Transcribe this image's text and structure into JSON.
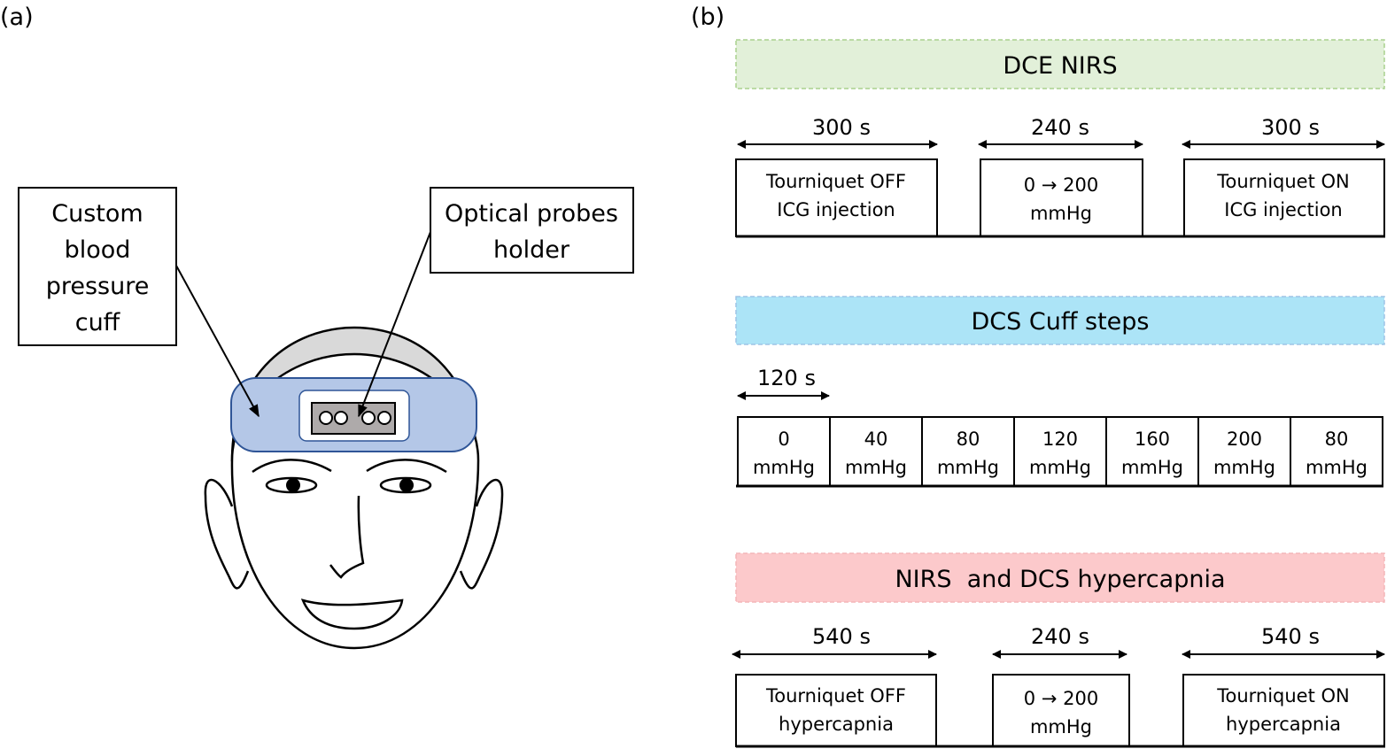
{
  "panel_a": {
    "label": "(a)",
    "cuff_label": [
      "Custom",
      "blood",
      "pressure",
      "cuff"
    ],
    "probe_label": [
      "Optical probes",
      "holder"
    ]
  },
  "panel_b": {
    "label": "(b)",
    "dce_nirs": {
      "title": "DCE NIRS",
      "color": "#e2f0d9",
      "durations": [
        "300 s",
        "240 s",
        "300 s"
      ],
      "boxes": [
        [
          "Tourniquet OFF",
          "ICG injection"
        ],
        [
          "0 → 200",
          "mmHg"
        ],
        [
          "Tourniquet ON",
          "ICG injection"
        ]
      ]
    },
    "dcs_cuff": {
      "title": "DCS Cuff steps",
      "color": "#ace4f7",
      "step_duration": "120 s",
      "steps": [
        [
          "0",
          "mmHg"
        ],
        [
          "40",
          "mmHg"
        ],
        [
          "80",
          "mmHg"
        ],
        [
          "120",
          "mmHg"
        ],
        [
          "160",
          "mmHg"
        ],
        [
          "200",
          "mmHg"
        ],
        [
          "80",
          "mmHg"
        ]
      ]
    },
    "hypercapnia": {
      "title": "NIRS  and DCS hypercapnia",
      "color": "#fcc9cb",
      "durations": [
        "540 s",
        "240 s",
        "540 s"
      ],
      "boxes": [
        [
          "Tourniquet OFF",
          "hypercapnia"
        ],
        [
          "0 → 200",
          "mmHg"
        ],
        [
          "Tourniquet ON",
          "hypercapnia"
        ]
      ]
    }
  }
}
